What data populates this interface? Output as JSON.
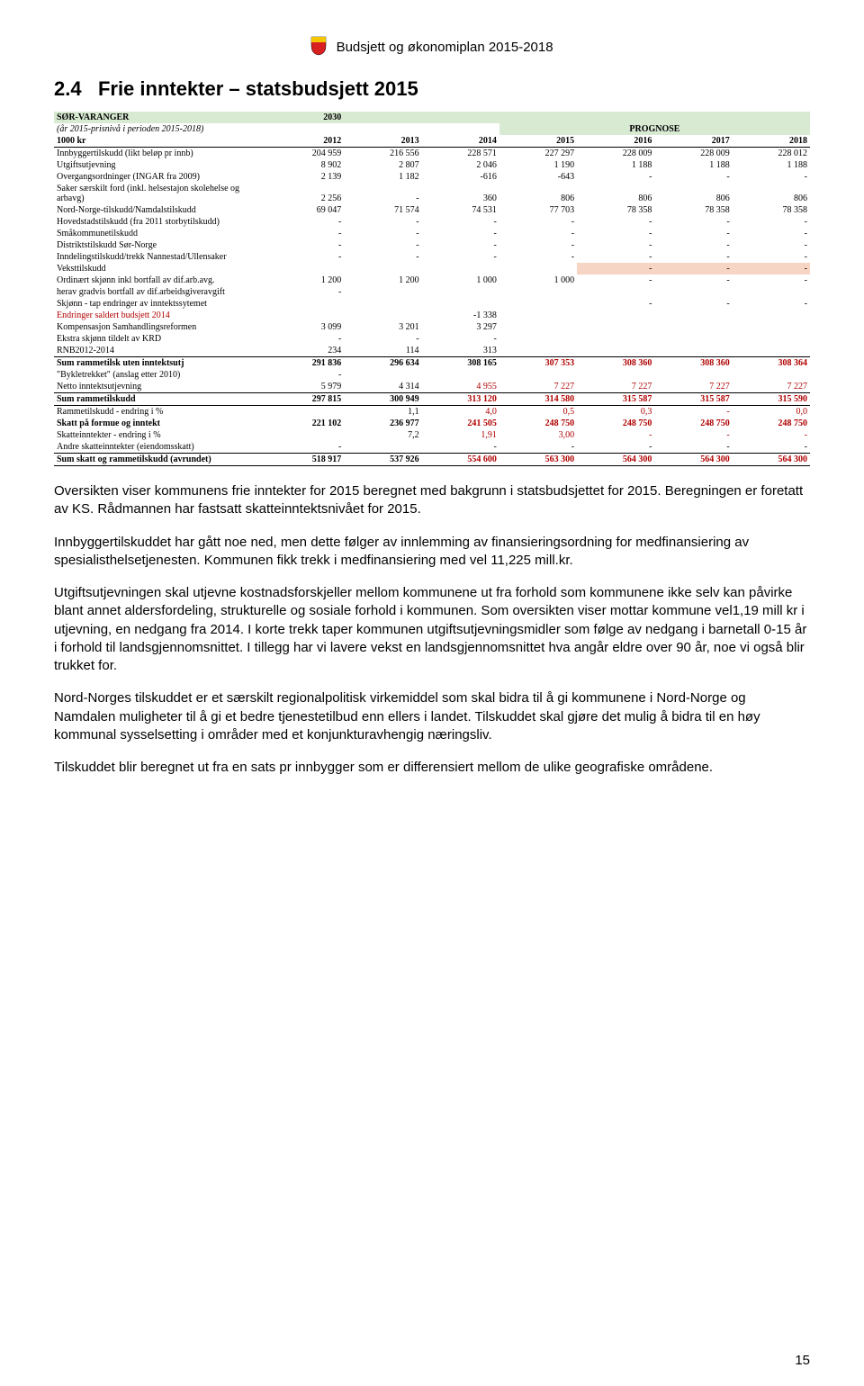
{
  "header": {
    "title": "Budsjett og økonomiplan 2015-2018"
  },
  "section": {
    "number": "2.4",
    "title": "Frie inntekter – statsbudsjett 2015"
  },
  "table": {
    "municipality": "SØR-VARANGER",
    "year_code": "2030",
    "subtitle": "(år 2015-prisnivå i perioden 2015-2018)",
    "prognose_label": "PROGNOSE",
    "unit_label": "1000 kr",
    "years": [
      "2012",
      "2013",
      "2014",
      "2015",
      "2016",
      "2017",
      "2018"
    ],
    "rows": [
      {
        "label": "Innbyggertilskudd (likt beløp pr innb)",
        "vals": [
          "204 959",
          "216 556",
          "228 571",
          "227 297",
          "228 009",
          "228 009",
          "228 012"
        ]
      },
      {
        "label": "Utgiftsutjevning",
        "vals": [
          "8 902",
          "2 807",
          "2 046",
          "1 190",
          "1 188",
          "1 188",
          "1 188"
        ]
      },
      {
        "label": "Overgangsordninger (INGAR fra 2009)",
        "vals": [
          "2 139",
          "1 182",
          "-616",
          "-643",
          "-",
          "-",
          "-"
        ]
      },
      {
        "label": "Saker særskilt ford (inkl. helsestajon skolehelse og arbavg)",
        "vals": [
          "2 256",
          "-",
          "360",
          "806",
          "806",
          "806",
          "806"
        ]
      },
      {
        "label": "Nord-Norge-tilskudd/Namdalstilskudd",
        "vals": [
          "69 047",
          "71 574",
          "74 531",
          "77 703",
          "78 358",
          "78 358",
          "78 358"
        ]
      },
      {
        "label": "Hovedstadstilskudd (fra 2011 storbytilskudd)",
        "vals": [
          "-",
          "-",
          "-",
          "-",
          "-",
          "-",
          "-"
        ]
      },
      {
        "label": "Småkommunetilskudd",
        "vals": [
          "-",
          "-",
          "-",
          "-",
          "-",
          "-",
          "-"
        ]
      },
      {
        "label": "Distriktstilskudd Sør-Norge",
        "vals": [
          "-",
          "-",
          "-",
          "-",
          "-",
          "-",
          "-"
        ]
      },
      {
        "label": "Inndelingstilskudd/trekk Nannestad/Ullensaker",
        "vals": [
          "-",
          "-",
          "-",
          "-",
          "-",
          "-",
          "-"
        ]
      },
      {
        "label": "Veksttilskudd",
        "vals": [
          "",
          "",
          "",
          "",
          "-",
          "-",
          "-"
        ],
        "peach": [
          4,
          5,
          6
        ]
      },
      {
        "label": "Ordinært skjønn inkl bortfall av dif.arb.avg.",
        "vals": [
          "1 200",
          "1 200",
          "1 000",
          "1 000",
          "-",
          "-",
          "-"
        ]
      },
      {
        "label": "   herav gradvis bortfall av dif.arbeidsgiveravgift",
        "vals": [
          "-",
          "",
          "",
          "",
          "",
          "",
          ""
        ]
      },
      {
        "label": "Skjønn - tap endringer av inntektssytemet",
        "vals": [
          "",
          "",
          "",
          "",
          "-",
          "-",
          "-"
        ]
      },
      {
        "label": "Endringer saldert budsjett 2014",
        "labelRed": true,
        "vals": [
          "",
          "",
          "-1 338",
          "",
          "",
          "",
          ""
        ]
      },
      {
        "label": "Kompensasjon Samhandlingsreformen",
        "vals": [
          "3 099",
          "3 201",
          "3 297",
          "",
          "",
          "",
          ""
        ]
      },
      {
        "label": "Ekstra skjønn tildelt av KRD",
        "vals": [
          "-",
          "-",
          "-",
          "",
          "",
          "",
          ""
        ]
      },
      {
        "label": "RNB2012-2014",
        "vals": [
          "234",
          "114",
          "313",
          "",
          "",
          "",
          ""
        ]
      },
      {
        "label": "Sum rammetilsk uten inntektsutj",
        "bold": true,
        "borderTop": true,
        "vals": [
          "291 836",
          "296 634",
          "308 165",
          "307 353",
          "308 360",
          "308 360",
          "308 364"
        ],
        "redFrom": 3
      },
      {
        "label": "\"Bykletrekket\" (anslag etter 2010)",
        "vals": [
          "-",
          "",
          "",
          "",
          "",
          "",
          ""
        ]
      },
      {
        "label": "Netto inntektsutjevning",
        "vals": [
          "5 979",
          "4 314",
          "4 955",
          "7 227",
          "7 227",
          "7 227",
          "7 227"
        ],
        "redFrom": 2
      },
      {
        "label": "Sum rammetilskudd",
        "bold": true,
        "borderTop": true,
        "borderBottom": true,
        "vals": [
          "297 815",
          "300 949",
          "313 120",
          "314 580",
          "315 587",
          "315 587",
          "315 590"
        ],
        "redFrom": 2
      },
      {
        "label": "Rammetilskudd - endring i %",
        "vals": [
          "",
          "1,1",
          "4,0",
          "0,5",
          "0,3",
          "-",
          "0,0"
        ],
        "redFrom": 2
      },
      {
        "label": "Skatt på formue og inntekt",
        "bold": true,
        "vals": [
          "221 102",
          "236 977",
          "241 505",
          "248 750",
          "248 750",
          "248 750",
          "248 750"
        ],
        "redFrom": 2
      },
      {
        "label": "Skatteinntekter - endring i %",
        "vals": [
          "",
          "7,2",
          "1,91",
          "3,00",
          "-",
          "-",
          "-"
        ],
        "redFrom": 2
      },
      {
        "label": "Andre skatteinntekter (eiendomsskatt)",
        "vals": [
          "-",
          "",
          "-",
          "-",
          "-",
          "-",
          "-"
        ]
      },
      {
        "label": "Sum skatt og rammetilskudd (avrundet)",
        "bold": true,
        "borderTop": true,
        "borderBottom": true,
        "vals": [
          "518 917",
          "537 926",
          "554 600",
          "563 300",
          "564 300",
          "564 300",
          "564 300"
        ],
        "redFrom": 2
      }
    ]
  },
  "paragraphs": [
    "Oversikten viser kommunens frie inntekter for 2015 beregnet med bakgrunn i statsbudsjettet for 2015. Beregningen er foretatt av KS. Rådmannen har fastsatt skatteinntektsnivået for 2015.",
    "Innbyggertilskuddet har gått noe ned, men dette følger av innlemming av finansieringsordning for medfinansiering av spesialisthelsetjenesten. Kommunen fikk trekk i medfinansiering med vel 11,225 mill.kr.",
    "Utgiftsutjevningen skal utjevne kostnadsforskjeller mellom kommunene ut fra forhold som kommunene ikke selv kan påvirke blant annet aldersfordeling, strukturelle og sosiale forhold i kommunen. Som oversikten viser mottar kommune vel1,19 mill kr i utjevning, en nedgang fra 2014.  I korte trekk taper kommunen utgiftsutjevningsmidler som følge av nedgang i barnetall 0-15 år i forhold til landsgjennomsnittet. I tillegg har vi lavere vekst en landsgjennomsnittet hva angår eldre over 90 år, noe vi også blir trukket for.",
    "Nord-Norges tilskuddet er et særskilt regionalpolitisk virkemiddel som skal bidra til å gi kommunene i Nord-Norge og Namdalen muligheter til å gi et bedre tjenestetilbud enn ellers i landet. Tilskuddet skal gjøre det mulig å bidra til en høy kommunal sysselsetting i områder med et konjunkturavhengig næringsliv.",
    "Tilskuddet blir beregnet ut fra en sats pr innbygger som er differensiert mellom de ulike geografiske områdene."
  ],
  "page_number": "15"
}
